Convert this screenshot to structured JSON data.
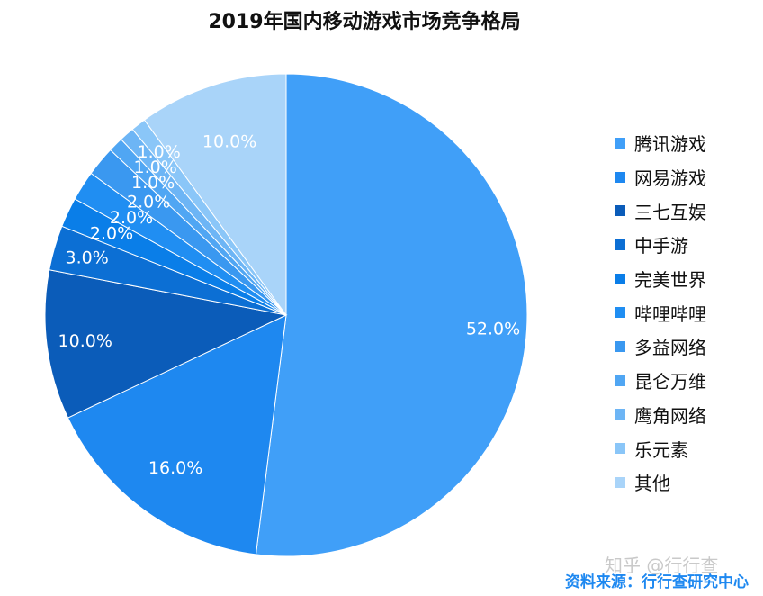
{
  "title": "2019年国内移动游戏市场竞争格局",
  "chart_data": {
    "type": "pie",
    "title": "2019年国内移动游戏市场竞争格局",
    "legend_position": "right",
    "slices": [
      {
        "label": "腾讯游戏",
        "value": 52.0,
        "value_label": "52.0%",
        "color": "#409ff8"
      },
      {
        "label": "网易游戏",
        "value": 16.0,
        "value_label": "16.0%",
        "color": "#1e88f0"
      },
      {
        "label": "三七互娱",
        "value": 10.0,
        "value_label": "10.0%",
        "color": "#0b5cb9"
      },
      {
        "label": "中手游",
        "value": 3.0,
        "value_label": "3.0%",
        "color": "#0c6fd4"
      },
      {
        "label": "完美世界",
        "value": 2.0,
        "value_label": "2.0%",
        "color": "#0a7ee8"
      },
      {
        "label": "哔哩哔哩",
        "value": 2.0,
        "value_label": "2.0%",
        "color": "#208ef2"
      },
      {
        "label": "多益网络",
        "value": 2.0,
        "value_label": "2.0%",
        "color": "#3a98f0"
      },
      {
        "label": "昆仑万维",
        "value": 1.0,
        "value_label": "1.0%",
        "color": "#50a6f3"
      },
      {
        "label": "鹰角网络",
        "value": 1.0,
        "value_label": "1.0%",
        "color": "#6db5f5"
      },
      {
        "label": "乐元素",
        "value": 1.0,
        "value_label": "1.0%",
        "color": "#8ac6f8"
      },
      {
        "label": "其他",
        "value": 10.0,
        "value_label": "10.0%",
        "color": "#a9d4f9"
      }
    ]
  },
  "watermark": "知乎 @行行查",
  "source": {
    "text": "资料来源：行行查研究中心",
    "color": "#1e88f0"
  }
}
